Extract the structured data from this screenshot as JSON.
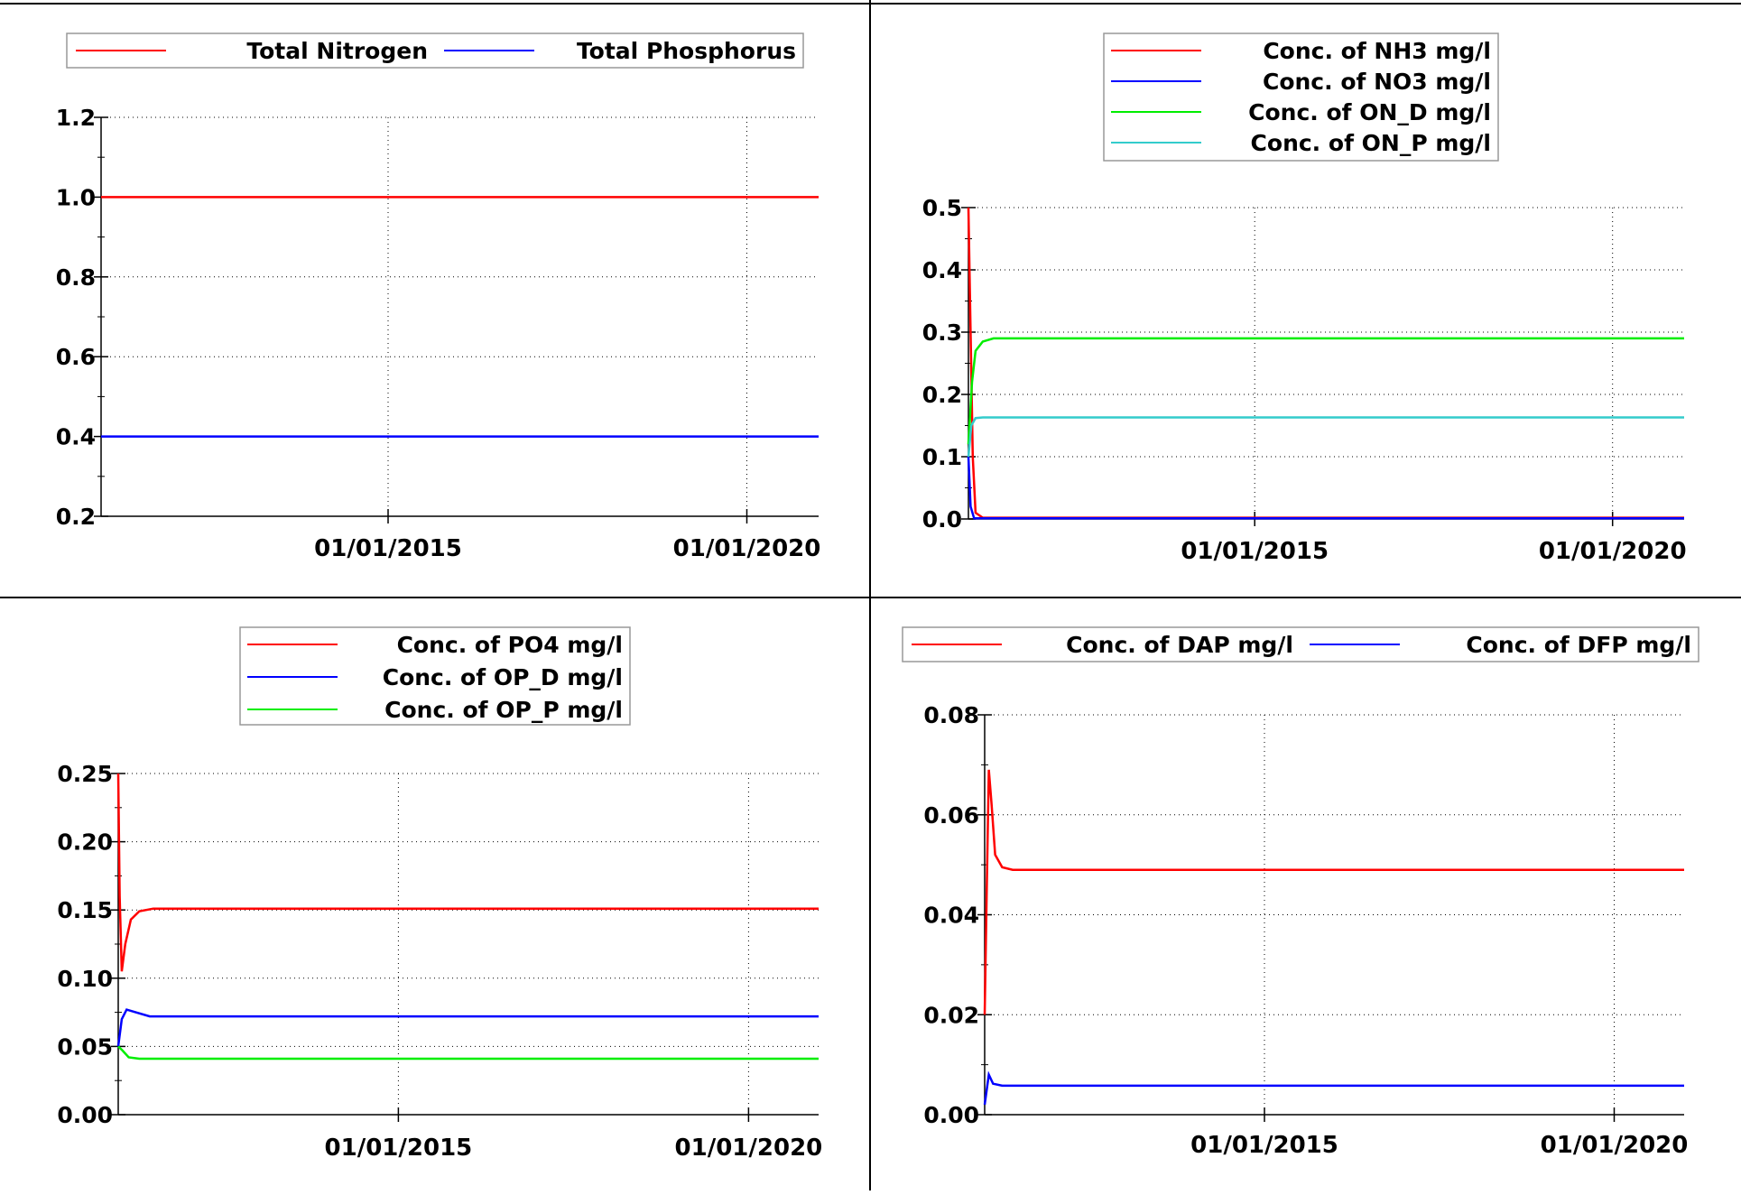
{
  "chart_data": [
    {
      "type": "line",
      "legend_placement": "top",
      "legend_columns": 2,
      "x_ticks": [
        "01/01/2015",
        "01/01/2020"
      ],
      "x_tick_values": [
        2015,
        2020
      ],
      "xlim": [
        2011,
        2021
      ],
      "ylim": [
        0.2,
        1.2
      ],
      "y_ticks": [
        "0.2",
        "0.4",
        "0.6",
        "0.8",
        "1.0",
        "1.2"
      ],
      "y_tick_values": [
        0.2,
        0.4,
        0.6,
        0.8,
        1.0,
        1.2
      ],
      "grid": true,
      "series": [
        {
          "name": "Total Nitrogen",
          "color": "#ff0000",
          "points": [
            [
              2011,
              1.0
            ],
            [
              2021,
              1.0
            ]
          ]
        },
        {
          "name": "Total Phosphorus",
          "color": "#0000ff",
          "points": [
            [
              2011,
              0.4
            ],
            [
              2021,
              0.4
            ]
          ]
        }
      ]
    },
    {
      "type": "line",
      "legend_placement": "top",
      "legend_columns": 1,
      "x_ticks": [
        "01/01/2015",
        "01/01/2020"
      ],
      "x_tick_values": [
        2015,
        2020
      ],
      "xlim": [
        2011,
        2021
      ],
      "ylim": [
        0.0,
        0.5
      ],
      "y_ticks": [
        "0.0",
        "0.1",
        "0.2",
        "0.3",
        "0.4",
        "0.5"
      ],
      "y_tick_values": [
        0.0,
        0.1,
        0.2,
        0.3,
        0.4,
        0.5
      ],
      "grid": true,
      "series": [
        {
          "name": "Conc. of NH3 mg/l",
          "color": "#ff0000",
          "points": [
            [
              2011,
              0.5
            ],
            [
              2011.03,
              0.3
            ],
            [
              2011.06,
              0.1
            ],
            [
              2011.1,
              0.01
            ],
            [
              2011.2,
              0.002
            ],
            [
              2021,
              0.002
            ]
          ]
        },
        {
          "name": "Conc. of NO3 mg/l",
          "color": "#0000ff",
          "points": [
            [
              2011,
              0.1
            ],
            [
              2011.03,
              0.02
            ],
            [
              2011.08,
              0.001
            ],
            [
              2021,
              0.001
            ]
          ]
        },
        {
          "name": "Conc. of ON_D mg/l",
          "color": "#00ee00",
          "points": [
            [
              2011,
              0.12
            ],
            [
              2011.05,
              0.22
            ],
            [
              2011.1,
              0.27
            ],
            [
              2011.2,
              0.285
            ],
            [
              2011.35,
              0.29
            ],
            [
              2021,
              0.29
            ]
          ]
        },
        {
          "name": "Conc. of ON_P mg/l",
          "color": "#33cccc",
          "points": [
            [
              2011,
              0.1
            ],
            [
              2011.04,
              0.15
            ],
            [
              2011.1,
              0.162
            ],
            [
              2011.2,
              0.163
            ],
            [
              2021,
              0.163
            ]
          ]
        }
      ]
    },
    {
      "type": "line",
      "legend_placement": "top",
      "legend_columns": 1,
      "x_ticks": [
        "01/01/2015",
        "01/01/2020"
      ],
      "x_tick_values": [
        2015,
        2020
      ],
      "xlim": [
        2011,
        2021
      ],
      "ylim": [
        0.0,
        0.25
      ],
      "y_ticks": [
        "0.00",
        "0.05",
        "0.10",
        "0.15",
        "0.20",
        "0.25"
      ],
      "y_tick_values": [
        0.0,
        0.05,
        0.1,
        0.15,
        0.2,
        0.25
      ],
      "grid": true,
      "series": [
        {
          "name": "Conc. of PO4 mg/l",
          "color": "#ff0000",
          "points": [
            [
              2011,
              0.25
            ],
            [
              2011.02,
              0.16
            ],
            [
              2011.05,
              0.105
            ],
            [
              2011.1,
              0.125
            ],
            [
              2011.18,
              0.143
            ],
            [
              2011.3,
              0.149
            ],
            [
              2011.5,
              0.151
            ],
            [
              2021,
              0.151
            ]
          ]
        },
        {
          "name": "Conc. of OP_D mg/l",
          "color": "#0000ff",
          "points": [
            [
              2011,
              0.05
            ],
            [
              2011.05,
              0.07
            ],
            [
              2011.12,
              0.077
            ],
            [
              2011.25,
              0.075
            ],
            [
              2011.45,
              0.072
            ],
            [
              2021,
              0.072
            ]
          ]
        },
        {
          "name": "Conc. of OP_P mg/l",
          "color": "#00ee00",
          "points": [
            [
              2011,
              0.05
            ],
            [
              2011.06,
              0.047
            ],
            [
              2011.15,
              0.042
            ],
            [
              2011.3,
              0.041
            ],
            [
              2021,
              0.041
            ]
          ]
        }
      ]
    },
    {
      "type": "line",
      "legend_placement": "top",
      "legend_columns": 2,
      "x_ticks": [
        "01/01/2015",
        "01/01/2020"
      ],
      "x_tick_values": [
        2015,
        2020
      ],
      "xlim": [
        2011,
        2021
      ],
      "ylim": [
        0.0,
        0.08
      ],
      "y_ticks": [
        "0.00",
        "0.02",
        "0.04",
        "0.06",
        "0.08"
      ],
      "y_tick_values": [
        0.0,
        0.02,
        0.04,
        0.06,
        0.08
      ],
      "grid": true,
      "series": [
        {
          "name": "Conc. of DAP mg/l",
          "color": "#ff0000",
          "points": [
            [
              2011,
              0.02
            ],
            [
              2011.03,
              0.045
            ],
            [
              2011.06,
              0.069
            ],
            [
              2011.1,
              0.062
            ],
            [
              2011.15,
              0.052
            ],
            [
              2011.25,
              0.0495
            ],
            [
              2011.4,
              0.049
            ],
            [
              2021,
              0.049
            ]
          ]
        },
        {
          "name": "Conc. of DFP mg/l",
          "color": "#0000ff",
          "points": [
            [
              2011,
              0.002
            ],
            [
              2011.03,
              0.005
            ],
            [
              2011.06,
              0.008
            ],
            [
              2011.12,
              0.0062
            ],
            [
              2011.25,
              0.0058
            ],
            [
              2021,
              0.0058
            ]
          ]
        }
      ]
    }
  ]
}
